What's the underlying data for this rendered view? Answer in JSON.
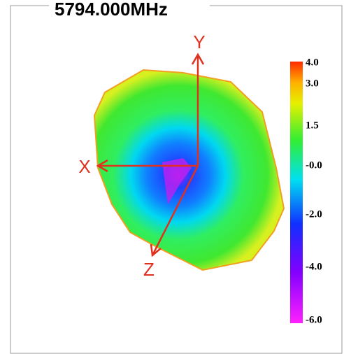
{
  "title": "5794.000MHz",
  "axes": {
    "y": "Y",
    "x": "X",
    "z": "Z"
  },
  "colorbar": {
    "labels": [
      "4.0",
      "3.0",
      "1.5",
      "-0.0",
      "-2.0",
      "-4.0",
      "-6.0"
    ]
  }
}
